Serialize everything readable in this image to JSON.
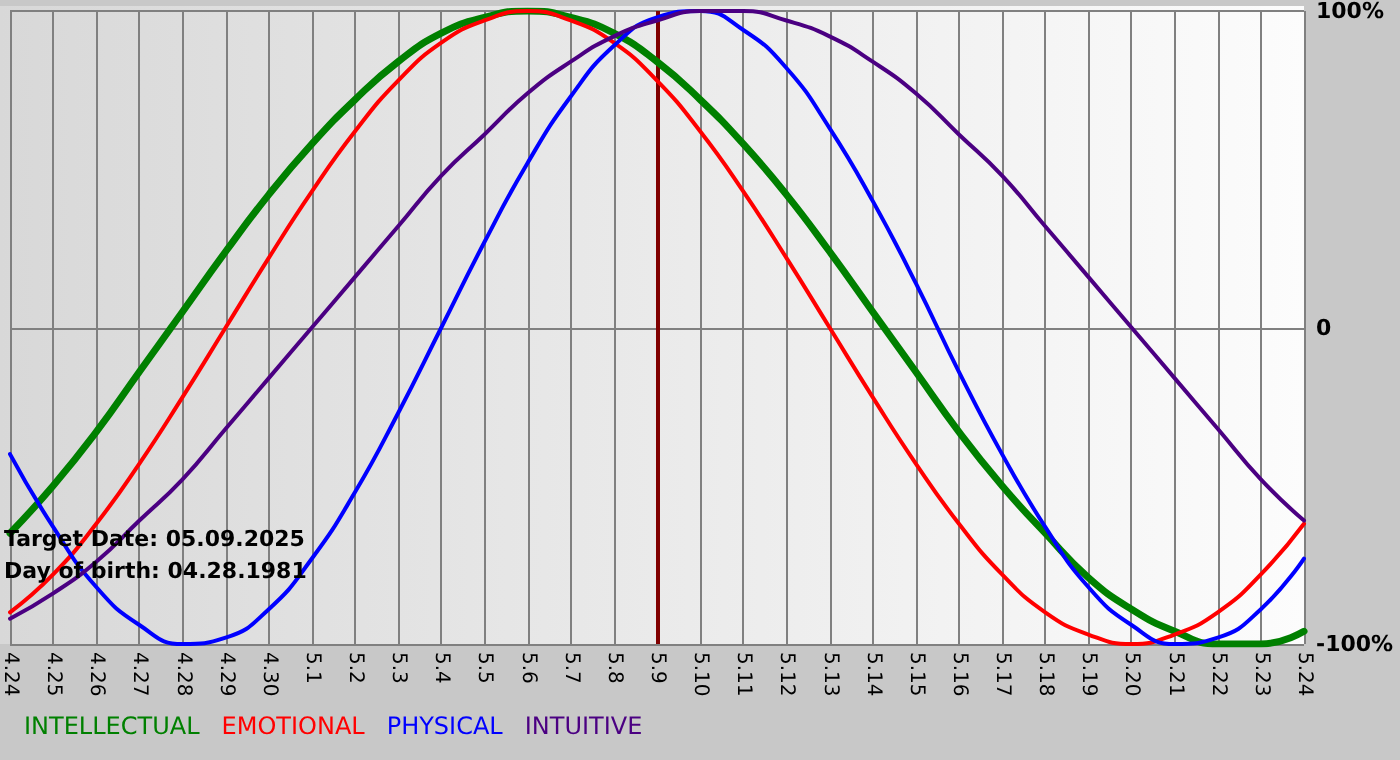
{
  "chart_data": {
    "type": "line",
    "categories": [
      "4.24",
      "4.25",
      "4.26",
      "4.27",
      "4.28",
      "4.29",
      "4.30",
      "5.1",
      "5.2",
      "5.3",
      "5.4",
      "5.5",
      "5.6",
      "5.7",
      "5.8",
      "5.9",
      "5.10",
      "5.11",
      "5.12",
      "5.13",
      "5.14",
      "5.15",
      "5.16",
      "5.17",
      "5.18",
      "5.19",
      "5.20",
      "5.21",
      "5.22",
      "5.23",
      "5.24"
    ],
    "series": [
      {
        "name": "INTELLECTUAL",
        "color": "#008000",
        "values": [
          -65,
          -50,
          -33,
          -14,
          5,
          24,
          42,
          58,
          72,
          84,
          93,
          98,
          100,
          98,
          93,
          84,
          72,
          58,
          42,
          24,
          5,
          -14,
          -33,
          -50,
          -65,
          -79,
          -89,
          -96,
          -100,
          -100,
          -96
        ]
      },
      {
        "name": "EMOTIONAL",
        "color": "#ff0000",
        "values": [
          -90,
          -78,
          -62,
          -43,
          -22,
          0,
          22,
          43,
          62,
          78,
          90,
          97,
          100,
          97,
          90,
          78,
          62,
          43,
          22,
          0,
          -22,
          -43,
          -62,
          -78,
          -90,
          -97,
          -100,
          -97,
          -90,
          -78,
          -62
        ]
      },
      {
        "name": "PHYSICAL",
        "color": "#0000ff",
        "values": [
          -40,
          -63,
          -82,
          -94,
          -100,
          -98,
          -89,
          -73,
          -52,
          -27,
          0,
          27,
          52,
          73,
          89,
          98,
          100,
          94,
          82,
          63,
          40,
          14,
          -14,
          -40,
          -63,
          -82,
          -94,
          -100,
          -98,
          -89,
          -73
        ]
      },
      {
        "name": "INTUITIVE",
        "color": "#4b0082",
        "values": [
          -92,
          -84,
          -74,
          -61,
          -48,
          -32,
          -16,
          0,
          16,
          32,
          48,
          61,
          74,
          84,
          92,
          97,
          100,
          100,
          97,
          92,
          84,
          74,
          61,
          48,
          32,
          16,
          0,
          -16,
          -32,
          -48,
          -61
        ]
      }
    ],
    "ylim": [
      -100,
      100
    ],
    "yticks": [
      {
        "value": -100,
        "label": "-100%"
      },
      0,
      {
        "value": 100,
        "label": "100%"
      }
    ],
    "ref_lines": [
      {
        "axis": "x",
        "value": "5.9",
        "color": "#800000"
      }
    ],
    "annotations": [
      "Target Date: 05.09.2025",
      "Day of birth: 04.28.1981"
    ],
    "grid": true,
    "legend": "bottom left",
    "marker": "none",
    "line_style": "solid"
  }
}
